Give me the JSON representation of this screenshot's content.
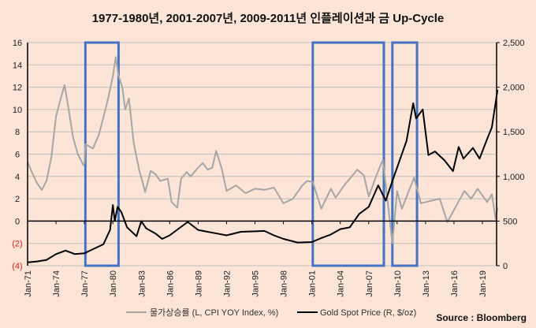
{
  "chart_data": {
    "type": "line",
    "title": "1977-1980년, 2001-2007년, 2009-2011년 인플레이션과 금 Up-Cycle",
    "source": "Source : Bloomberg",
    "x_range": [
      1971,
      2020.6
    ],
    "x_ticks": [
      "Jan-71",
      "Jan-74",
      "Jan-77",
      "Jan-80",
      "Jan-83",
      "Jan-86",
      "Jan-89",
      "Jan-92",
      "Jan-95",
      "Jan-98",
      "Jan-01",
      "Jan-04",
      "Jan-07",
      "Jan-10",
      "Jan-13",
      "Jan-16",
      "Jan-19"
    ],
    "y_left": {
      "range": [
        -4,
        16
      ],
      "ticks": [
        "(4)",
        "(2)",
        "0",
        "2",
        "4",
        "6",
        "8",
        "10",
        "12",
        "14",
        "16"
      ],
      "tick_values": [
        -4,
        -2,
        0,
        2,
        4,
        6,
        8,
        10,
        12,
        14,
        16
      ],
      "negative_color": "#e02020"
    },
    "y_right": {
      "range": [
        0,
        2500
      ],
      "ticks": [
        "0",
        "500",
        "1,000",
        "1,500",
        "2,000",
        "2,500"
      ],
      "tick_values": [
        0,
        500,
        1000,
        1500,
        2000,
        2500
      ]
    },
    "grid": true,
    "legend_position": "bottom",
    "highlight_periods": [
      [
        1977.1,
        1980.6
      ],
      [
        2001.1,
        2008.6
      ],
      [
        2009.5,
        2012.1
      ]
    ],
    "highlight_color": "#4472c4",
    "series": [
      {
        "name": "물가상승률 (L, CPI YOY Index, %)",
        "axis": "left",
        "color": "#a6a6a6",
        "points": [
          [
            1971,
            5.3
          ],
          [
            1971.5,
            4.3
          ],
          [
            1972,
            3.4
          ],
          [
            1972.5,
            2.8
          ],
          [
            1973,
            3.6
          ],
          [
            1973.5,
            5.7
          ],
          [
            1974,
            9.4
          ],
          [
            1974.5,
            11
          ],
          [
            1974.9,
            12.2
          ],
          [
            1975.3,
            10.2
          ],
          [
            1975.8,
            7.5
          ],
          [
            1976.3,
            6.0
          ],
          [
            1976.9,
            5.0
          ],
          [
            1977.0,
            5.2
          ],
          [
            1977.1,
            6.9
          ],
          [
            1977.9,
            6.5
          ],
          [
            1978.5,
            7.7
          ],
          [
            1979,
            9.3
          ],
          [
            1979.5,
            11
          ],
          [
            1980.0,
            13
          ],
          [
            1980.3,
            14.7
          ],
          [
            1980.6,
            13
          ],
          [
            1981.0,
            12
          ],
          [
            1981.3,
            10
          ],
          [
            1981.7,
            11
          ],
          [
            1982.2,
            7
          ],
          [
            1982.8,
            4.5
          ],
          [
            1983.1,
            3.6
          ],
          [
            1983.4,
            2.6
          ],
          [
            1984,
            4.5
          ],
          [
            1984.5,
            4.2
          ],
          [
            1985,
            3.6
          ],
          [
            1985.8,
            3.8
          ],
          [
            1986.2,
            1.7
          ],
          [
            1986.8,
            1.2
          ],
          [
            1987.2,
            3.8
          ],
          [
            1987.8,
            4.4
          ],
          [
            1988.2,
            4.0
          ],
          [
            1989,
            4.8
          ],
          [
            1989.5,
            5.2
          ],
          [
            1990.0,
            4.6
          ],
          [
            1990.5,
            4.8
          ],
          [
            1990.9,
            6.3
          ],
          [
            1991.5,
            4.7
          ],
          [
            1992,
            2.7
          ],
          [
            1993,
            3.2
          ],
          [
            1994,
            2.5
          ],
          [
            1995,
            2.9
          ],
          [
            1996,
            2.8
          ],
          [
            1997,
            3.0
          ],
          [
            1998,
            1.6
          ],
          [
            1999,
            2.0
          ],
          [
            2000,
            3.2
          ],
          [
            2000.5,
            3.6
          ],
          [
            2001.1,
            3.5
          ],
          [
            2002,
            1.1
          ],
          [
            2003,
            2.9
          ],
          [
            2003.5,
            2.1
          ],
          [
            2004.5,
            3.3
          ],
          [
            2005.8,
            4.6
          ],
          [
            2006.5,
            4.1
          ],
          [
            2007,
            2.2
          ],
          [
            2007.9,
            4.3
          ],
          [
            2008.5,
            5.5
          ],
          [
            2009.5,
            -2.0
          ],
          [
            2010,
            2.7
          ],
          [
            2010.5,
            1.1
          ],
          [
            2011.8,
            3.9
          ],
          [
            2012.5,
            1.6
          ],
          [
            2013.5,
            1.8
          ],
          [
            2014.5,
            2.0
          ],
          [
            2015.3,
            -0.1
          ],
          [
            2016,
            1.0
          ],
          [
            2017.1,
            2.7
          ],
          [
            2017.8,
            2.0
          ],
          [
            2018.5,
            2.9
          ],
          [
            2019.5,
            1.7
          ],
          [
            2020.0,
            2.4
          ],
          [
            2020.4,
            0.2
          ],
          [
            2020.6,
            1.2
          ]
        ]
      },
      {
        "name": "Gold Spot Price (R, $/oz)",
        "axis": "right",
        "color": "#000000",
        "points": [
          [
            1971,
            38
          ],
          [
            1972,
            48
          ],
          [
            1973,
            65
          ],
          [
            1974,
            130
          ],
          [
            1975,
            170
          ],
          [
            1976,
            130
          ],
          [
            1977,
            140
          ],
          [
            1978,
            190
          ],
          [
            1979,
            240
          ],
          [
            1979.7,
            400
          ],
          [
            1980.0,
            680
          ],
          [
            1980.2,
            500
          ],
          [
            1980.5,
            660
          ],
          [
            1980.9,
            600
          ],
          [
            1981.5,
            430
          ],
          [
            1982.5,
            330
          ],
          [
            1983.0,
            500
          ],
          [
            1983.5,
            420
          ],
          [
            1984.5,
            360
          ],
          [
            1985.2,
            300
          ],
          [
            1986,
            340
          ],
          [
            1987,
            420
          ],
          [
            1987.9,
            490
          ],
          [
            1989,
            400
          ],
          [
            1990,
            380
          ],
          [
            1991,
            360
          ],
          [
            1992,
            340
          ],
          [
            1993.5,
            380
          ],
          [
            1995,
            385
          ],
          [
            1996,
            390
          ],
          [
            1997,
            340
          ],
          [
            1998,
            300
          ],
          [
            1999.5,
            260
          ],
          [
            2001,
            265
          ],
          [
            2002,
            310
          ],
          [
            2003,
            350
          ],
          [
            2004,
            410
          ],
          [
            2005,
            430
          ],
          [
            2006,
            580
          ],
          [
            2007,
            660
          ],
          [
            2008,
            900
          ],
          [
            2008.8,
            730
          ],
          [
            2009.5,
            950
          ],
          [
            2010,
            1100
          ],
          [
            2011,
            1400
          ],
          [
            2011.7,
            1820
          ],
          [
            2012,
            1650
          ],
          [
            2012.7,
            1750
          ],
          [
            2013.3,
            1240
          ],
          [
            2014,
            1280
          ],
          [
            2015,
            1180
          ],
          [
            2015.9,
            1060
          ],
          [
            2016.5,
            1330
          ],
          [
            2017,
            1200
          ],
          [
            2018,
            1320
          ],
          [
            2018.7,
            1200
          ],
          [
            2019.5,
            1420
          ],
          [
            2020,
            1550
          ],
          [
            2020.6,
            1970
          ]
        ]
      }
    ]
  }
}
